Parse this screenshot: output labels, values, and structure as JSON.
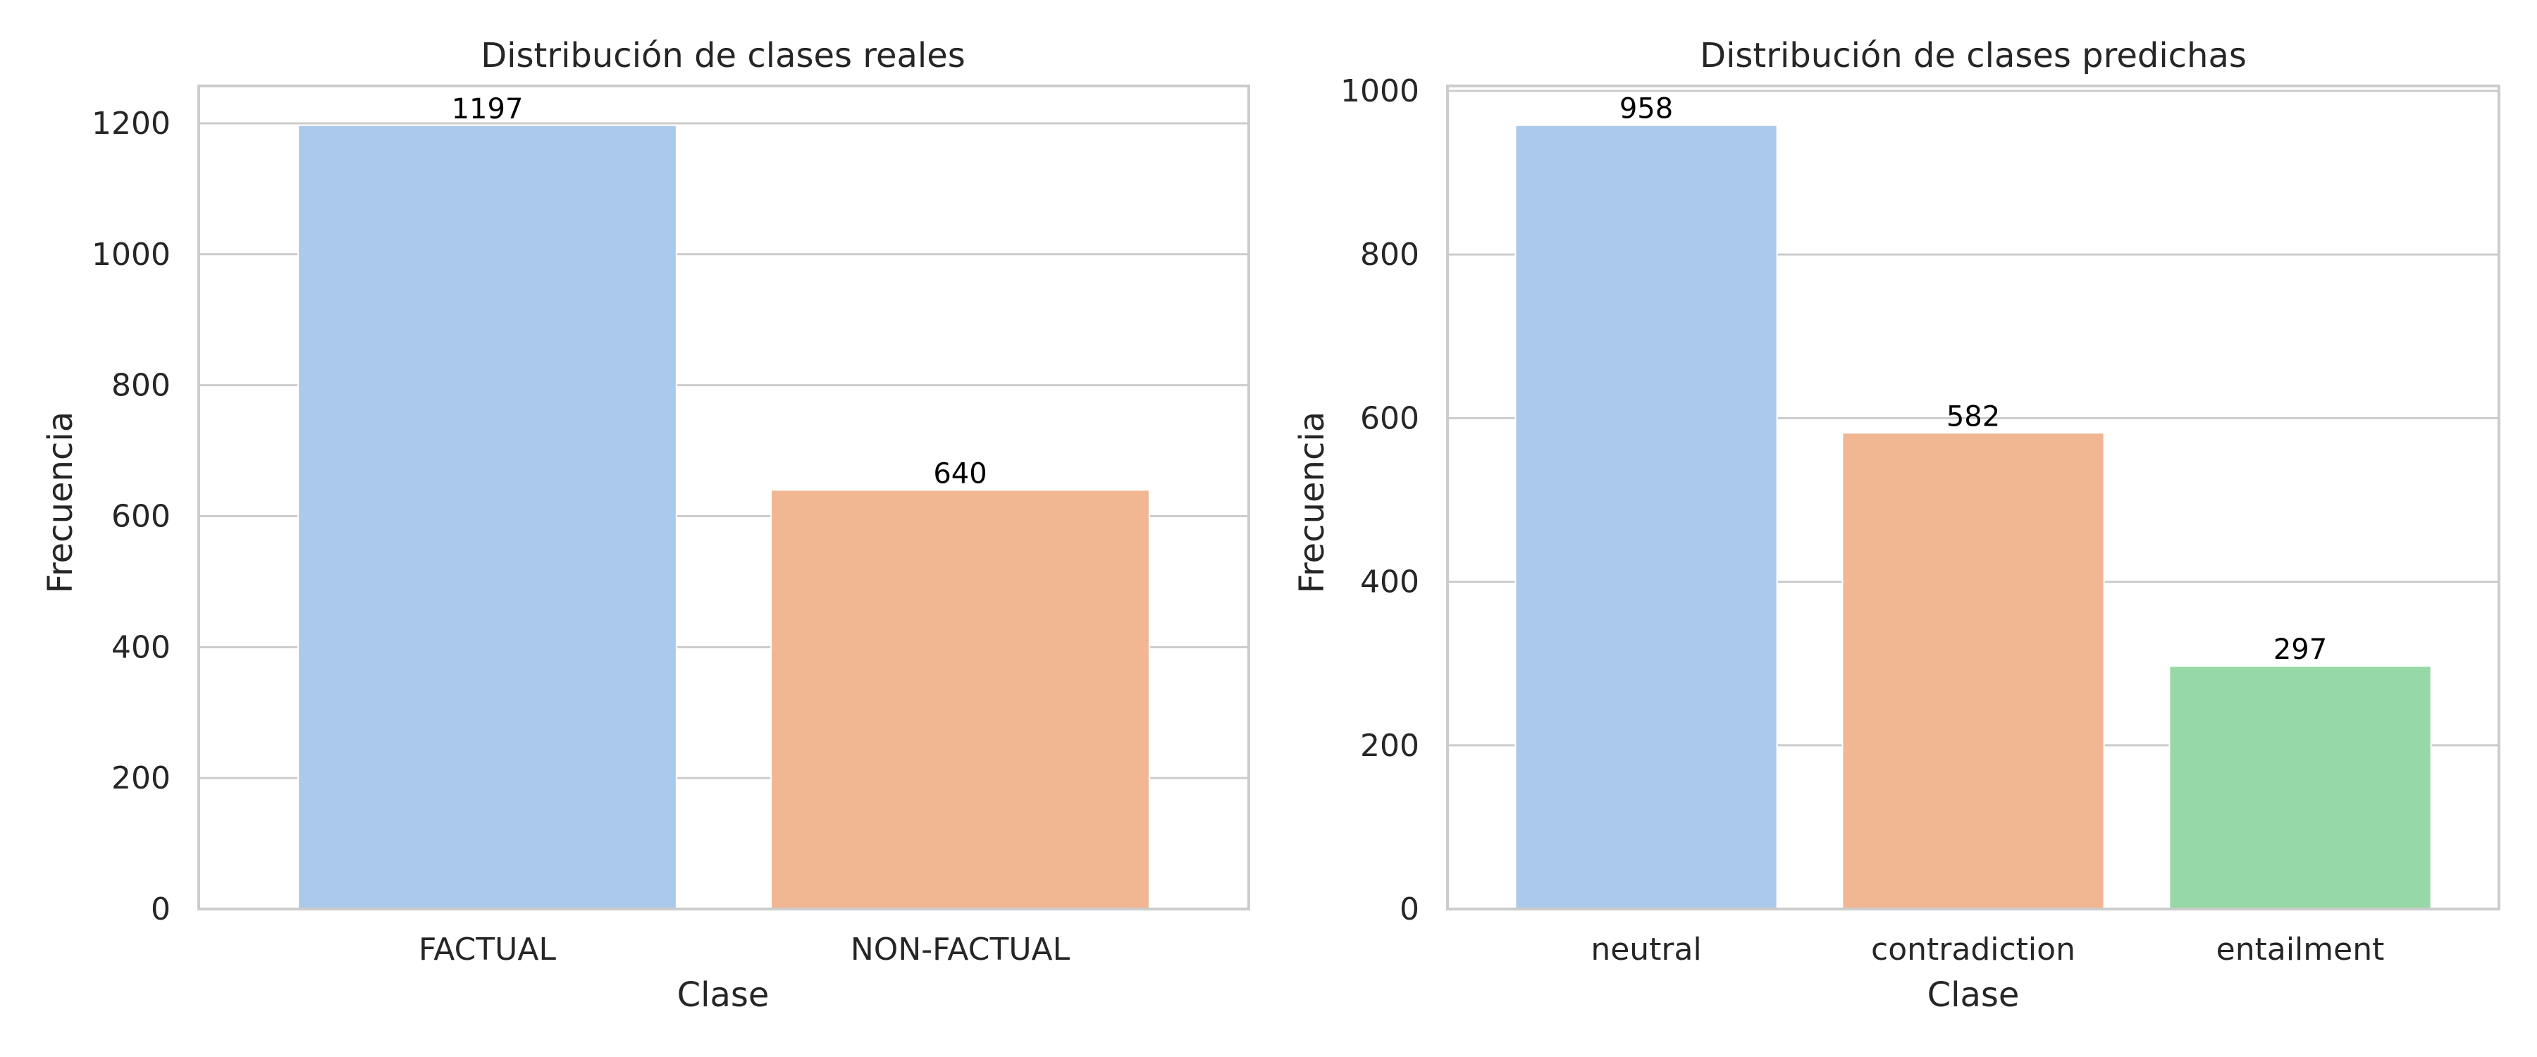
{
  "chart_data": [
    {
      "type": "bar",
      "title": "Distribución de clases reales",
      "xlabel": "Clase",
      "ylabel": "Frecuencia",
      "categories": [
        "FACTUAL",
        "NON-FACTUAL"
      ],
      "values": [
        1197,
        640
      ],
      "value_labels": [
        "1197",
        "640"
      ],
      "colors": [
        "#abc9ed",
        "#f0b792"
      ],
      "ylim": [
        0,
        1257
      ],
      "yticks": [
        0,
        200,
        400,
        600,
        800,
        1000,
        1200
      ],
      "ytick_labels": [
        "0",
        "200",
        "400",
        "600",
        "800",
        "1000",
        "1200"
      ],
      "grid": true
    },
    {
      "type": "bar",
      "title": "Distribución de clases predichas",
      "xlabel": "Clase",
      "ylabel": "Frecuencia",
      "categories": [
        "neutral",
        "contradiction",
        "entailment"
      ],
      "values": [
        958,
        582,
        297
      ],
      "value_labels": [
        "958",
        "582",
        "297"
      ],
      "colors": [
        "#abc9ed",
        "#f0b792",
        "#96d9a6"
      ],
      "ylim": [
        0,
        1006
      ],
      "yticks": [
        0,
        200,
        400,
        600,
        800,
        1000
      ],
      "ytick_labels": [
        "0",
        "200",
        "400",
        "600",
        "800",
        "1000"
      ],
      "grid": true
    }
  ]
}
